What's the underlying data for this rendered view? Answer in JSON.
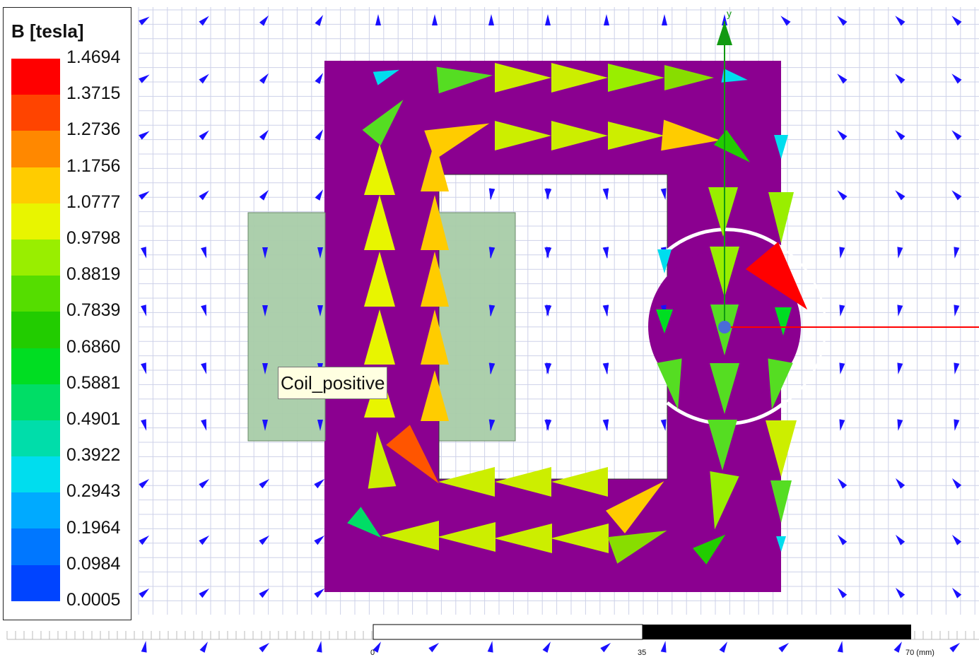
{
  "legend": {
    "title": "B [tesla]",
    "levels": [
      "1.4694",
      "1.3715",
      "1.2736",
      "1.1756",
      "1.0777",
      "0.9798",
      "0.8819",
      "0.7839",
      "0.6860",
      "0.5881",
      "0.4901",
      "0.3922",
      "0.2943",
      "0.1964",
      "0.0984",
      "0.0005"
    ],
    "colors": [
      "#ff0000",
      "#ff4400",
      "#ff8800",
      "#ffcc00",
      "#e8f500",
      "#99ee00",
      "#55dd00",
      "#22cc00",
      "#00dd22",
      "#00dd66",
      "#00ddaa",
      "#00ddee",
      "#00aaff",
      "#0077ff",
      "#0044ff",
      "#0000ff"
    ]
  },
  "labels": {
    "coil": "Coil_positive"
  },
  "scale_bar": {
    "ticks": [
      "0",
      "35",
      "70 (mm)"
    ]
  },
  "colors": {
    "core": "#8b0090",
    "coil": "#a8cca8",
    "grid": "#c9cde6",
    "background_vector": "#1a10ff",
    "x_axis": "#ff0000",
    "y_axis": "#119911"
  }
}
